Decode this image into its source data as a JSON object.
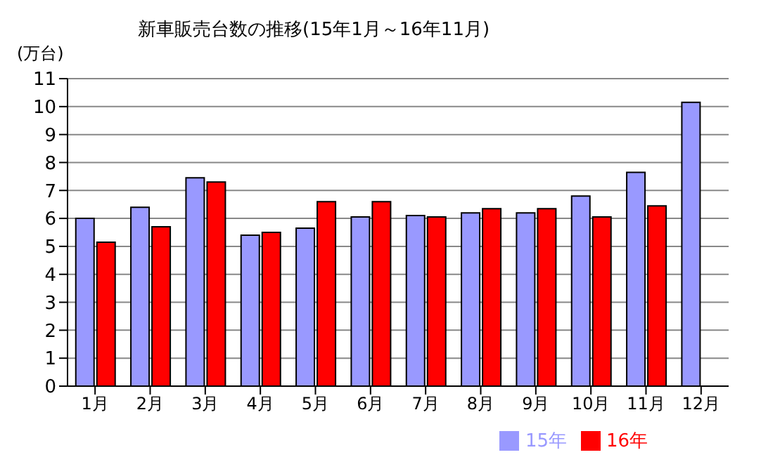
{
  "chart_data": {
    "type": "bar",
    "title": "新車販売台数の推移(15年1月～16年11月)",
    "ylabel": "(万台)",
    "categories": [
      "1月",
      "2月",
      "3月",
      "4月",
      "5月",
      "6月",
      "7月",
      "8月",
      "9月",
      "10月",
      "11月",
      "12月"
    ],
    "series": [
      {
        "name": "15年",
        "color": "#9999ff",
        "values": [
          6.0,
          6.4,
          7.45,
          5.4,
          5.65,
          6.05,
          6.1,
          6.2,
          6.2,
          6.8,
          7.65,
          10.15
        ]
      },
      {
        "name": "16年",
        "color": "#ff0000",
        "values": [
          5.15,
          5.7,
          7.3,
          5.5,
          6.6,
          6.6,
          6.05,
          6.35,
          6.35,
          6.05,
          6.45,
          null
        ]
      }
    ],
    "ylim": [
      0,
      11
    ],
    "yticks": [
      0,
      1,
      2,
      3,
      4,
      5,
      6,
      7,
      8,
      9,
      10,
      11
    ],
    "grid": "y",
    "legend": "bottom"
  }
}
